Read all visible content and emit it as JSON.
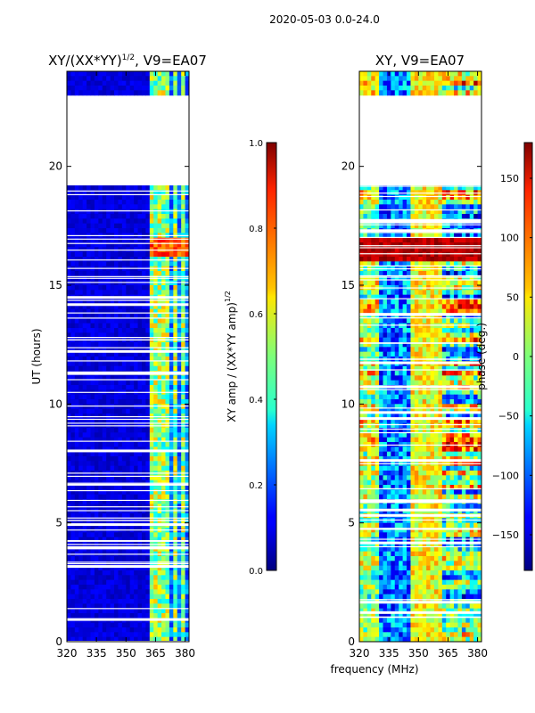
{
  "chart_data": [
    {
      "type": "heatmap",
      "suptitle": "2020-05-03 0.0-24.0",
      "title_prefix": "XY/(XX*YY)",
      "title_exp": "1/2",
      "title_suffix": ", V9=EA07",
      "xlabel": "",
      "ylabel": "UT (hours)",
      "xlim": [
        320,
        382
      ],
      "ylim": [
        0,
        24
      ],
      "xticks": [
        320,
        335,
        350,
        365,
        380
      ],
      "yticks": [
        0,
        5,
        10,
        15,
        20
      ],
      "colormap": "jet",
      "gap_hours": [
        [
          19.3,
          23.0
        ]
      ],
      "bright_channels_mhz": [
        [
          363,
          366
        ],
        [
          367,
          369
        ],
        [
          371,
          372.5
        ],
        [
          374,
          376
        ],
        [
          378,
          380
        ]
      ],
      "colorbar": {
        "label": "XY amp / (XX*YY amp)",
        "label_exp": "1/2",
        "range": [
          0.0,
          1.0
        ],
        "ticks": [
          "0.0",
          "0.2",
          "0.4",
          "0.6",
          "0.8",
          "1.0"
        ]
      }
    },
    {
      "type": "heatmap",
      "title": "XY, V9=EA07",
      "xlabel": "frequency (MHz)",
      "ylabel": "",
      "xlim": [
        320,
        382
      ],
      "ylim": [
        0,
        24
      ],
      "xticks": [
        320,
        335,
        350,
        365,
        380
      ],
      "yticks": [
        0,
        5,
        10,
        15,
        20
      ],
      "colormap": "jet",
      "gap_hours": [
        [
          19.3,
          23.0
        ]
      ],
      "colorbar": {
        "label": "phase (deg.)",
        "range": [
          -180,
          180
        ],
        "ticks": [
          "150",
          "100",
          "50",
          "0",
          "−50",
          "−100",
          "−150"
        ]
      }
    }
  ]
}
